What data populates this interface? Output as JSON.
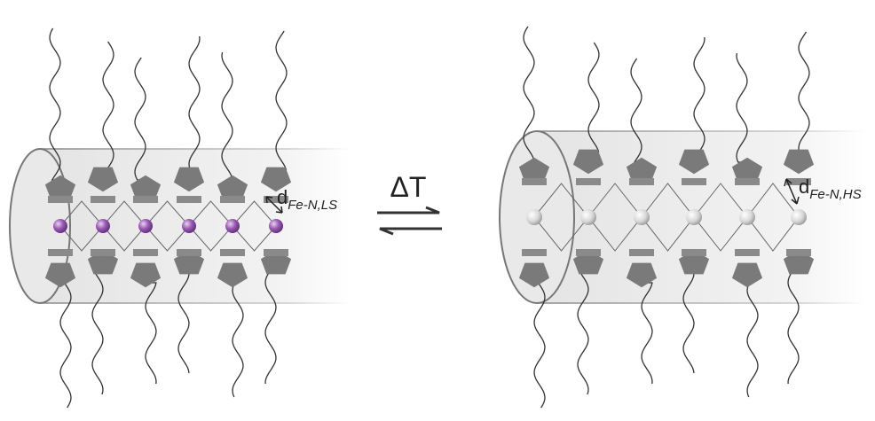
{
  "left": {
    "label": {
      "main": "d",
      "sub": "Fe-N,LS"
    }
  },
  "arrow": {
    "label": "ΔT"
  },
  "right": {
    "label": {
      "main": "d",
      "sub": "Fe-N,HS"
    }
  }
}
